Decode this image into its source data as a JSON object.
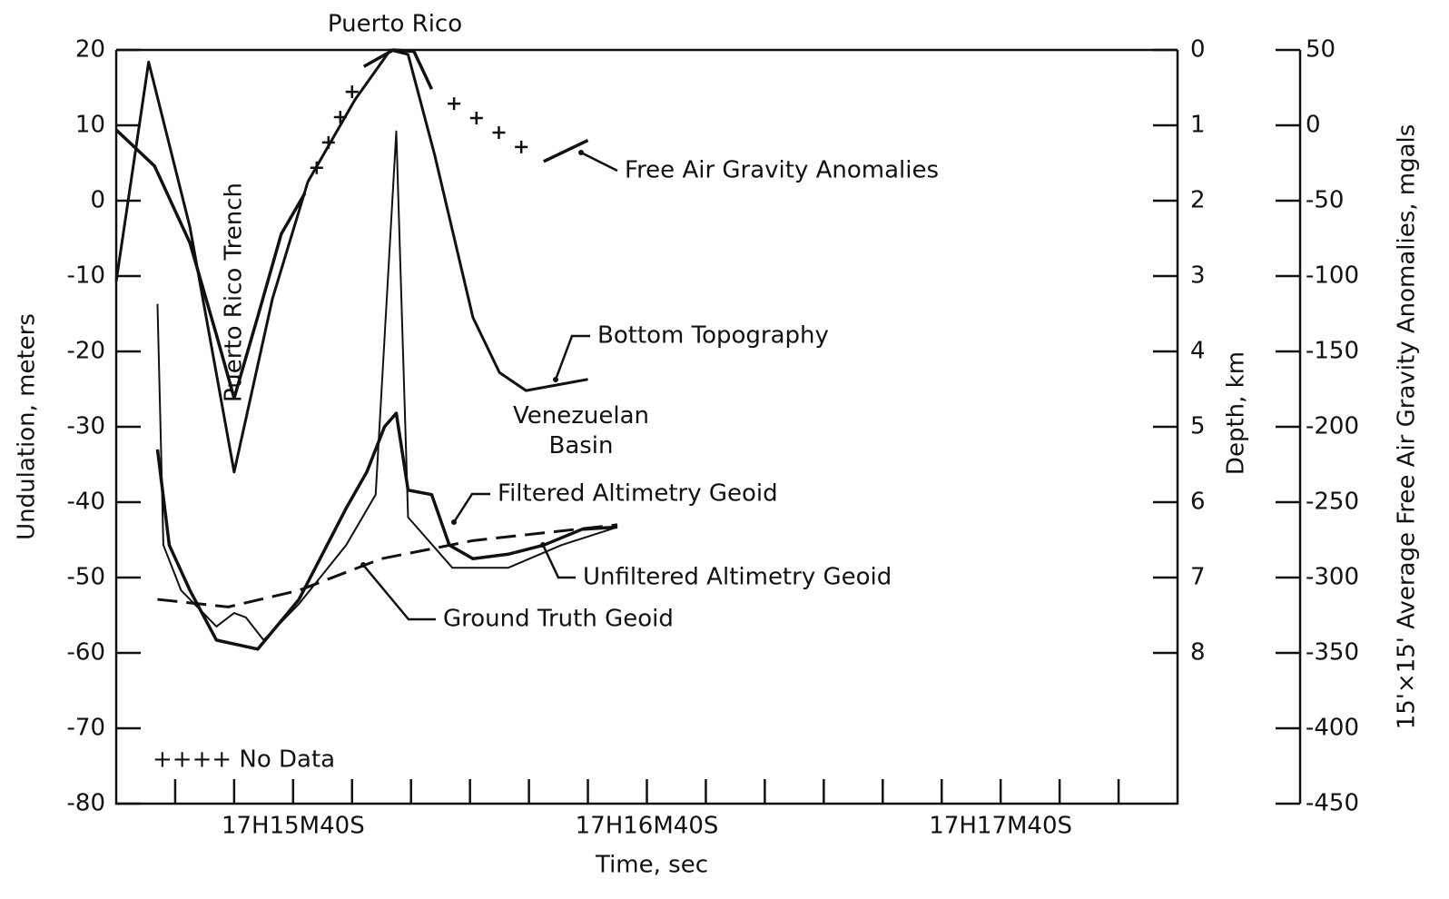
{
  "chart_data": {
    "type": "line",
    "x_label": "Time, sec",
    "y_label": "Undulation, meters",
    "y2_label": "Depth, km",
    "y3_label": "15'×15' Average Free Air Gravity Anomalies, mgals",
    "xlim": [
      62110,
      62290
    ],
    "xticks": [
      {
        "value": 62140,
        "label": "17H15M40S"
      },
      {
        "value": 62200,
        "label": "17H16M40S"
      },
      {
        "value": 62260,
        "label": "17H17M40S"
      }
    ],
    "xminor_ticks": [
      62120,
      62130,
      62150,
      62160,
      62170,
      62180,
      62190,
      62210,
      62220,
      62230,
      62240,
      62250,
      62270,
      62280
    ],
    "ylim": [
      -80,
      20
    ],
    "yticks": [
      20,
      10,
      0,
      -10,
      -20,
      -30,
      -40,
      -50,
      -60,
      -70,
      -80
    ],
    "y2lim": [
      10,
      0
    ],
    "y2ticks": [
      0,
      1,
      2,
      3,
      4,
      5,
      6,
      7,
      8
    ],
    "y3lim": [
      -450,
      50
    ],
    "y3ticks": [
      50,
      0,
      -50,
      -100,
      -150,
      -200,
      -250,
      -300,
      -350,
      -400,
      -450
    ],
    "annotations": [
      "Puerto Rico",
      "Puerto Rico Trench",
      "Venezuelan Basin"
    ],
    "no_data_note": "++++ No Data",
    "series": [
      {
        "name": "Free Air Gravity Anomalies",
        "axis": "y3",
        "color": "#111",
        "line_width": 3.5,
        "style": "solid",
        "x": [
          62110,
          62116.5,
          62122.5,
          62127,
          62130,
          62134,
          62138,
          62142,
          62146.5,
          62152,
          62157,
          62160.5,
          62163.5,
          62176.5,
          62182.5,
          62190
        ],
        "values": [
          -3,
          -27,
          -78,
          -139,
          -181,
          -127,
          -72,
          -45,
          null,
          39,
          50,
          49,
          24,
          null,
          -24,
          -10
        ]
      },
      {
        "name": "Bottom Topography",
        "axis": "y2",
        "color": "#111",
        "line_width": 3,
        "style": "solid",
        "x": [
          62110,
          62115.5,
          62122.5,
          62130,
          62136.5,
          62142.5,
          62150.5,
          62156.5,
          62159.5,
          62164,
          62170.5,
          62175,
          62179.5,
          62190
        ],
        "values": [
          3.07,
          0.16,
          2.35,
          5.6,
          3.3,
          1.75,
          0.66,
          0,
          0.06,
          1.39,
          3.55,
          4.28,
          4.52,
          4.37
        ]
      },
      {
        "name": "Filtered Altimetry Geoid",
        "axis": "y",
        "color": "#111",
        "line_width": 3.5,
        "style": "solid",
        "x": [
          62117,
          62119,
          62122.5,
          62127,
          62134,
          62141,
          62149,
          62152.5,
          62155.5,
          62157.5,
          62159.5,
          62163.5,
          62166.5,
          62170.5,
          62176.5,
          62182.5,
          62189,
          62195
        ],
        "values": [
          -33,
          -45.7,
          -51.7,
          -58.3,
          -59.5,
          -52.9,
          -40.8,
          -36,
          -30,
          -28.2,
          -38.4,
          -39,
          -45.7,
          -47.5,
          -46.9,
          -45.7,
          -43.6,
          -43.3
        ]
      },
      {
        "name": "Unfiltered Altimetry Geoid",
        "axis": "y",
        "color": "#111",
        "line_width": 2,
        "style": "solid",
        "x": [
          62117,
          62118,
          62121,
          62127,
          62130,
          62132,
          62135,
          62141,
          62149,
          62154,
          62157.5,
          62159.5,
          62167,
          62176.5,
          62185.5,
          62195
        ],
        "values": [
          -13.7,
          -45.7,
          -51.7,
          -56.5,
          -54.7,
          -55.3,
          -58.3,
          -53.5,
          -45.7,
          -39,
          9.2,
          -42,
          -48.7,
          -48.7,
          -45.7,
          -43.3
        ]
      },
      {
        "name": "Ground Truth Geoid",
        "axis": "y",
        "color": "#111",
        "line_width": 3,
        "style": "dashed",
        "x": [
          62117,
          62129,
          62141,
          62155,
          62170.5,
          62195
        ],
        "values": [
          -52.9,
          -53.9,
          -51.7,
          -47.5,
          -45.1,
          -43
        ]
      }
    ]
  }
}
